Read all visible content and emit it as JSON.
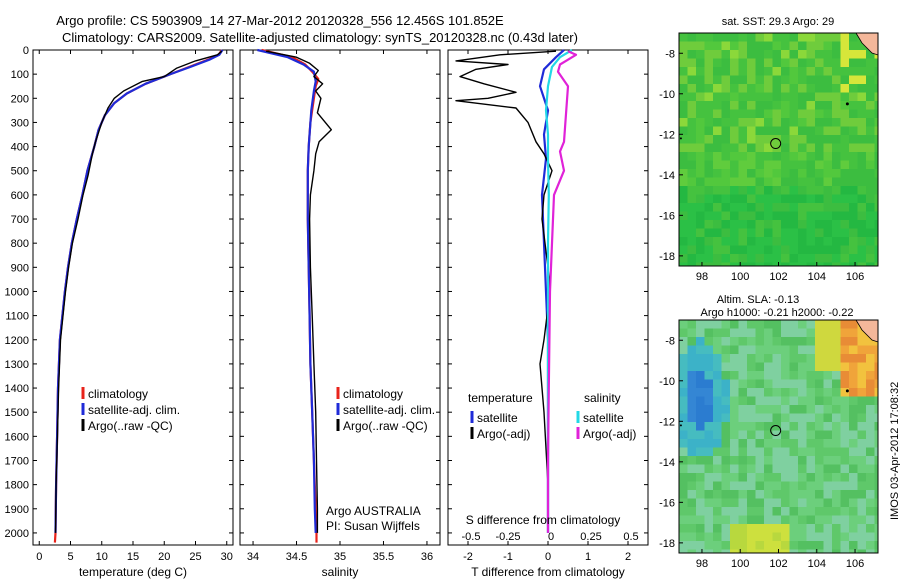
{
  "header": {
    "line1": "Argo profile: CS 5903909_14 27-Mar-2012 20120328_556 12.456S 101.852E",
    "line2": "Climatology: CARS2009. Satellite-adjusted climatology: synTS_20120328.nc (0.43d later)"
  },
  "colors": {
    "climatology": "#e8231b",
    "satellite": "#1f2bd8",
    "argo": "#000000",
    "cyan": "#22d8e6",
    "magenta": "#e022d8"
  },
  "chart_data": [
    {
      "type": "line",
      "panel": "temperature",
      "xlabel": "temperature (deg C)",
      "ylabel": "",
      "xlim": [
        -1,
        31
      ],
      "ylim": [
        2050,
        0
      ],
      "xticks": [
        0,
        5,
        10,
        15,
        20,
        25,
        30
      ],
      "yticks": [
        0,
        100,
        200,
        300,
        400,
        500,
        600,
        700,
        800,
        900,
        1000,
        1100,
        1200,
        1300,
        1400,
        1500,
        1600,
        1700,
        1800,
        1900,
        2000
      ],
      "legend": [
        "climatology",
        "satellite-adj. clim.",
        "Argo(..raw -QC)"
      ],
      "series": [
        {
          "name": "climatology",
          "color": "#e8231b",
          "x": [
            29.2,
            28.7,
            27,
            24,
            21,
            17,
            14,
            12,
            10.5,
            9.5,
            8.8,
            7.7,
            6.9,
            6,
            5.2,
            4.6,
            4.1,
            3.7,
            3.3,
            3,
            2.85,
            2.7,
            2.6,
            2.5
          ],
          "y": [
            0,
            20,
            40,
            70,
            100,
            140,
            180,
            220,
            270,
            330,
            400,
            500,
            600,
            700,
            800,
            900,
            1000,
            1100,
            1200,
            1400,
            1600,
            1800,
            2000,
            2040
          ]
        },
        {
          "name": "satellite-adj. clim.",
          "color": "#1f2bd8",
          "x": [
            29.3,
            28.8,
            27.2,
            24.2,
            21,
            17,
            14,
            12,
            10.5,
            9.5,
            8.8,
            7.7,
            6.9,
            6,
            5.2,
            4.6,
            4.1,
            3.7,
            3.3,
            3,
            2.85,
            2.7,
            2.6
          ],
          "y": [
            0,
            20,
            40,
            70,
            100,
            140,
            180,
            220,
            270,
            330,
            400,
            500,
            600,
            700,
            800,
            900,
            1000,
            1100,
            1200,
            1400,
            1600,
            1800,
            2000
          ]
        },
        {
          "name": "Argo(..raw -QC)",
          "color": "#000000",
          "x": [
            29.2,
            28.5,
            25,
            22,
            20,
            16.5,
            13.5,
            12,
            11,
            10,
            9,
            8.5,
            7.8,
            7,
            6.2,
            5.3,
            4.7,
            4.2,
            3.8,
            3.4,
            3.1,
            2.9,
            2.7,
            2.6
          ],
          "y": [
            5,
            20,
            45,
            75,
            110,
            130,
            170,
            200,
            240,
            300,
            380,
            430,
            520,
            600,
            700,
            800,
            900,
            1000,
            1100,
            1200,
            1400,
            1600,
            1800,
            2000
          ]
        }
      ]
    },
    {
      "type": "line",
      "panel": "salinity",
      "xlabel": "salinity",
      "xlim": [
        33.85,
        36.15
      ],
      "ylim": [
        2050,
        0
      ],
      "xticks": [
        34,
        34.5,
        35,
        35.5,
        36
      ],
      "legend": [
        "climatology",
        "satellite-adj. clim.",
        "Argo(..raw -QC)"
      ],
      "annotations": [
        "Argo AUSTRALIA",
        "PI: Susan Wijffels"
      ],
      "series": [
        {
          "name": "climatology",
          "color": "#e8231b",
          "x": [
            34.1,
            34.45,
            34.6,
            34.68,
            34.75,
            34.72,
            34.7,
            34.66,
            34.64,
            34.63,
            34.63,
            34.64,
            34.65,
            34.66,
            34.68,
            34.7,
            34.71,
            34.72,
            34.73,
            34.73
          ],
          "y": [
            0,
            30,
            60,
            90,
            120,
            150,
            200,
            300,
            400,
            500,
            700,
            900,
            1100,
            1300,
            1500,
            1700,
            1800,
            1900,
            2000,
            2040
          ]
        },
        {
          "name": "satellite-adj. clim.",
          "color": "#1f2bd8",
          "x": [
            34.05,
            34.4,
            34.58,
            34.7,
            34.72,
            34.7,
            34.67,
            34.64,
            34.63,
            34.63,
            34.64,
            34.65,
            34.66,
            34.68,
            34.7,
            34.71,
            34.72
          ],
          "y": [
            0,
            30,
            60,
            90,
            130,
            170,
            250,
            400,
            500,
            700,
            900,
            1100,
            1300,
            1500,
            1700,
            1900,
            2000
          ]
        },
        {
          "name": "Argo(..raw -QC)",
          "color": "#000000",
          "x": [
            34.15,
            34.5,
            34.65,
            34.75,
            34.7,
            34.8,
            34.72,
            34.78,
            34.74,
            34.9,
            34.76,
            34.72,
            34.7,
            34.66,
            34.65,
            34.66,
            34.68,
            34.7,
            34.72,
            34.73,
            34.74,
            34.74
          ],
          "y": [
            5,
            30,
            55,
            85,
            110,
            140,
            170,
            200,
            260,
            330,
            380,
            430,
            500,
            600,
            700,
            900,
            1100,
            1300,
            1500,
            1700,
            1900,
            2000
          ]
        }
      ]
    },
    {
      "type": "line",
      "panel": "difference",
      "xlabel": "T difference from climatology",
      "xlabel2": "S difference from climatology",
      "xlim": [
        -2.5,
        2.5
      ],
      "xticks": [
        -2,
        -1,
        0,
        1,
        2
      ],
      "xticks2": [
        "-0.5",
        "-0.25",
        "0",
        "0.25",
        "0.5"
      ],
      "ylim": [
        2050,
        0
      ],
      "legend_headers": [
        "temperature",
        "salinity"
      ],
      "legend": [
        "satellite",
        "Argo(-adj)",
        "satellite",
        "Argo(-adj)"
      ],
      "series": [
        {
          "name": "satellite",
          "quantity": "temperature",
          "color": "#1f2bd8",
          "x": [
            0.4,
            0.2,
            -0.1,
            -0.2,
            0,
            -0.1,
            -0.05,
            -0.15,
            -0.1,
            -0.05,
            0,
            0,
            0,
            0,
            0
          ],
          "y": [
            0,
            30,
            80,
            150,
            250,
            350,
            450,
            600,
            800,
            1000,
            1200,
            1400,
            1600,
            1800,
            2000
          ]
        },
        {
          "name": "Argo(-adj)",
          "quantity": "temperature",
          "color": "#000000",
          "x": [
            0.2,
            -1.2,
            -2.3,
            -1,
            -1.8,
            -2.2,
            -1.6,
            -0.8,
            -1.5,
            -2.3,
            -0.8,
            -0.5,
            -0.3,
            -0.1,
            0.1,
            -0.1,
            -0.15,
            0,
            0.05,
            -0.1,
            -0.2,
            -0.1,
            0,
            0
          ],
          "y": [
            5,
            20,
            45,
            60,
            80,
            110,
            140,
            175,
            200,
            210,
            240,
            300,
            380,
            430,
            500,
            600,
            700,
            900,
            1000,
            1200,
            1300,
            1500,
            1800,
            2000
          ]
        },
        {
          "name": "satellite",
          "quantity": "salinity",
          "color": "#22d8e6",
          "x": [
            0.6,
            0.3,
            0.1,
            0,
            -0.05,
            0,
            0,
            0.02,
            0,
            0,
            0,
            0,
            0,
            0
          ],
          "y": [
            0,
            30,
            70,
            150,
            250,
            350,
            450,
            600,
            800,
            1000,
            1200,
            1400,
            1700,
            2000
          ]
        },
        {
          "name": "Argo(-adj)",
          "quantity": "salinity",
          "color": "#e022d8",
          "x": [
            0.5,
            0.7,
            0.5,
            0.3,
            0.25,
            0.5,
            0.4,
            0.3,
            0.4,
            0.15,
            0.1,
            0.05,
            0.02,
            0,
            0
          ],
          "y": [
            5,
            20,
            40,
            60,
            90,
            150,
            380,
            420,
            500,
            600,
            800,
            1000,
            1400,
            1700,
            2000
          ]
        }
      ]
    },
    {
      "type": "heatmap",
      "panel": "sst-map",
      "title": "sat. SST: 29.3 Argo: 29",
      "xlim": [
        96.8,
        107.2
      ],
      "ylim": [
        -18.5,
        -7
      ],
      "xticks": [
        98,
        100,
        102,
        104,
        106
      ],
      "yticks": [
        -8,
        -10,
        -12,
        -14,
        -16,
        -18
      ],
      "marker": {
        "lon": 101.852,
        "lat": -12.456
      }
    },
    {
      "type": "heatmap",
      "panel": "sla-map",
      "title": "Altim. SLA: -0.13",
      "subtitle": "Argo h1000: -0.21 h2000: -0.22",
      "xlim": [
        96.8,
        107.2
      ],
      "ylim": [
        -18.5,
        -7
      ],
      "xticks": [
        98,
        100,
        102,
        104,
        106
      ],
      "yticks": [
        -8,
        -10,
        -12,
        -14,
        -16,
        -18
      ],
      "marker": {
        "lon": 101.852,
        "lat": -12.456
      }
    }
  ],
  "stamp": "IMOS 03-Apr-2012 17:08:32"
}
